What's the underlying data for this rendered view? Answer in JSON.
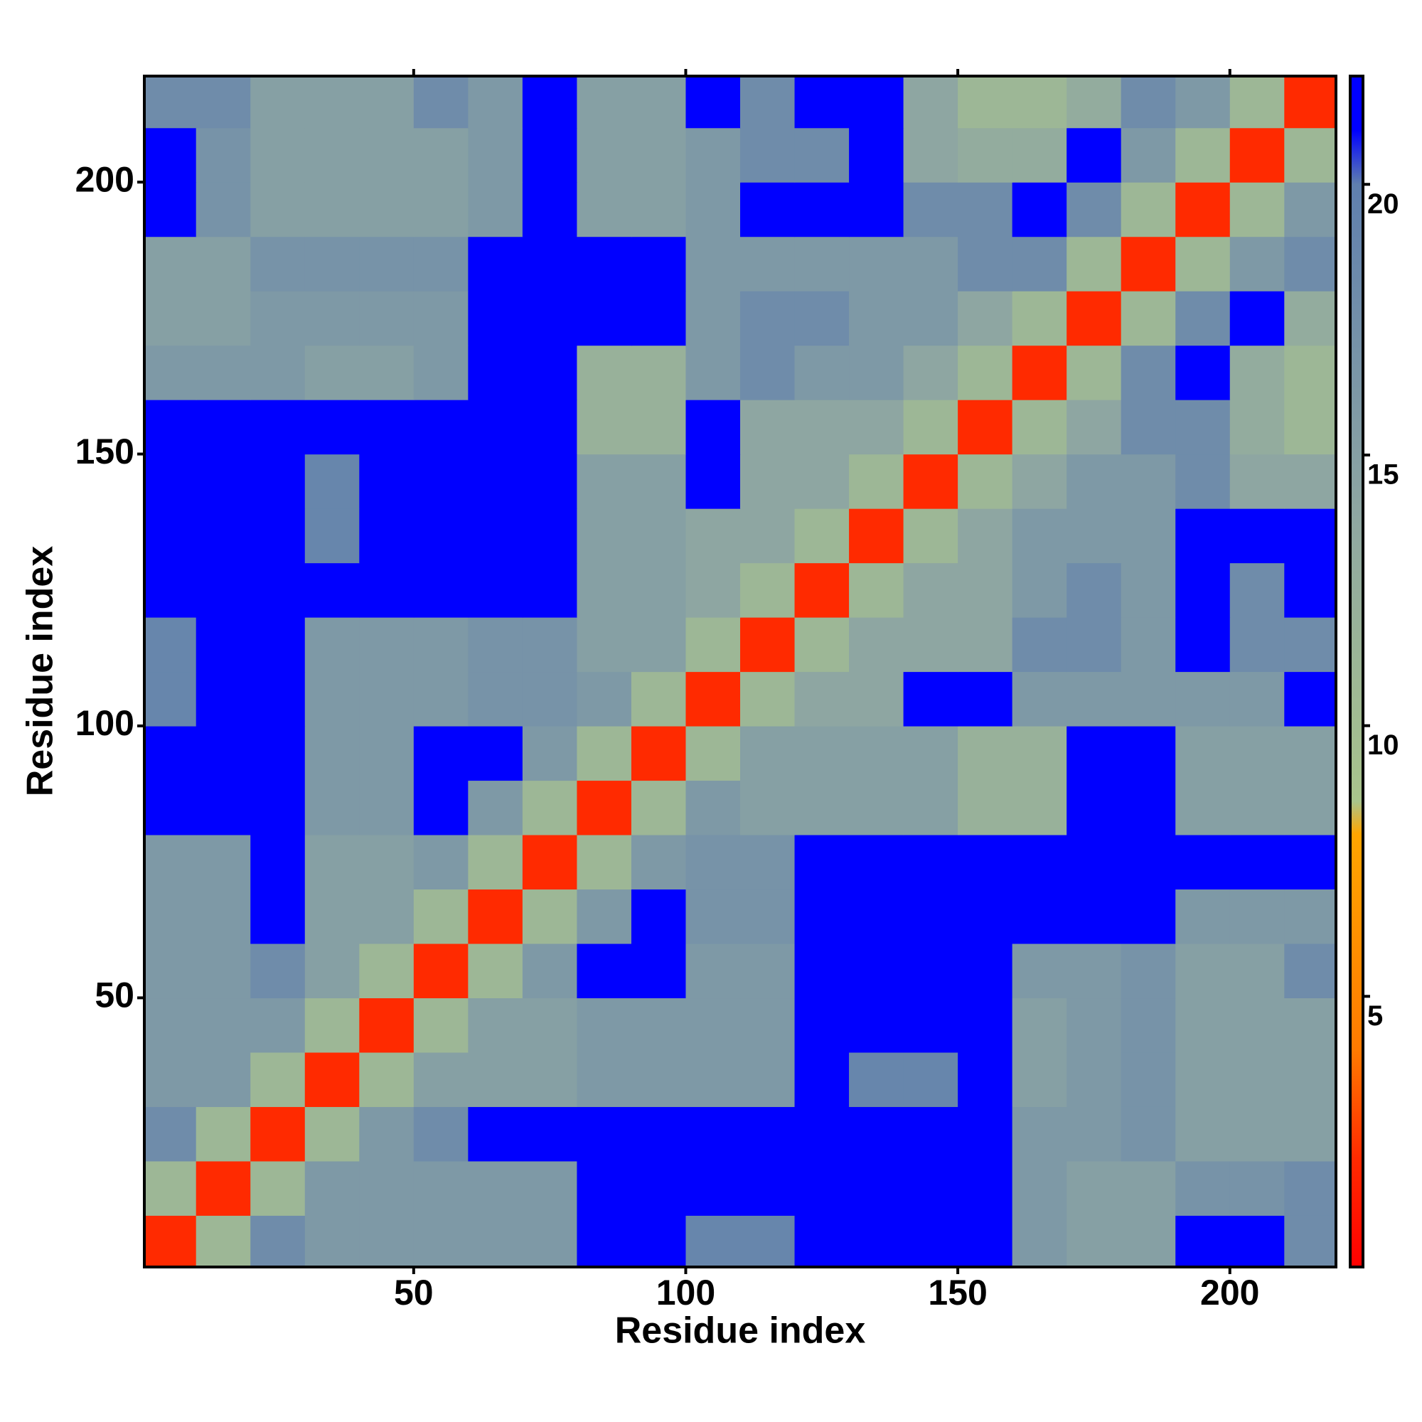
{
  "chart_data": {
    "type": "heatmap",
    "xlabel": "Residue index",
    "ylabel": "Residue index",
    "x": [
      5,
      15,
      25,
      35,
      45,
      55,
      65,
      75,
      85,
      95,
      105,
      115,
      125,
      135,
      145,
      155,
      165,
      175,
      185,
      195,
      205,
      215
    ],
    "y": [
      5,
      15,
      25,
      35,
      45,
      55,
      65,
      75,
      85,
      95,
      105,
      115,
      125,
      135,
      145,
      155,
      165,
      175,
      185,
      195,
      205,
      215
    ],
    "xlim": [
      0.5,
      219.5
    ],
    "ylim": [
      0.5,
      219.5
    ],
    "xticks": [
      50,
      100,
      150,
      200
    ],
    "yticks": [
      50,
      100,
      150,
      200
    ],
    "clim": [
      0,
      22
    ],
    "cticks": [
      5,
      10,
      15,
      20
    ],
    "colorscale": [
      [
        0,
        "#ff0000"
      ],
      [
        2,
        "#ff2a00"
      ],
      [
        4,
        "#ff7a00"
      ],
      [
        8,
        "#ffa500"
      ],
      [
        8.6,
        "#a9c48c"
      ],
      [
        14,
        "#8ea6a2"
      ],
      [
        20,
        "#5f7fae"
      ],
      [
        21,
        "#0000ff"
      ],
      [
        22,
        "#0000ff"
      ]
    ],
    "values": [
      [
        2,
        11,
        18,
        16,
        16,
        16,
        16,
        16,
        22,
        22,
        19,
        19,
        22,
        22,
        22,
        22,
        16,
        15,
        15,
        22,
        22,
        18
      ],
      [
        11,
        2,
        11,
        16,
        16,
        16,
        16,
        16,
        22,
        22,
        22,
        22,
        22,
        22,
        22,
        22,
        16,
        15,
        15,
        17,
        17,
        18
      ],
      [
        18,
        11,
        2,
        11,
        16,
        18,
        22,
        22,
        22,
        22,
        22,
        22,
        22,
        22,
        22,
        22,
        16,
        16,
        17,
        15,
        15,
        15
      ],
      [
        16,
        16,
        11,
        2,
        11,
        15,
        15,
        15,
        16,
        16,
        16,
        16,
        22,
        19,
        19,
        22,
        15,
        16,
        17,
        15,
        15,
        15
      ],
      [
        16,
        16,
        16,
        11,
        2,
        11,
        15,
        15,
        16,
        16,
        16,
        16,
        22,
        22,
        22,
        22,
        15,
        16,
        17,
        15,
        15,
        15
      ],
      [
        16,
        16,
        18,
        15,
        11,
        2,
        11,
        16,
        22,
        22,
        16,
        16,
        22,
        22,
        22,
        22,
        16,
        16,
        17,
        15,
        15,
        18
      ],
      [
        16,
        16,
        22,
        15,
        15,
        11,
        2,
        11,
        16,
        22,
        17,
        17,
        22,
        22,
        22,
        22,
        22,
        22,
        22,
        16,
        16,
        16
      ],
      [
        16,
        16,
        22,
        15,
        15,
        16,
        11,
        2,
        11,
        16,
        17,
        17,
        22,
        22,
        22,
        22,
        22,
        22,
        22,
        22,
        22,
        22
      ],
      [
        22,
        22,
        22,
        16,
        16,
        22,
        16,
        11,
        2,
        11,
        16,
        15,
        15,
        15,
        15,
        12,
        12,
        22,
        22,
        15,
        15,
        15
      ],
      [
        22,
        22,
        22,
        16,
        16,
        22,
        22,
        16,
        11,
        2,
        11,
        15,
        15,
        15,
        15,
        12,
        12,
        22,
        22,
        15,
        15,
        15
      ],
      [
        19,
        22,
        22,
        16,
        16,
        16,
        17,
        17,
        16,
        11,
        2,
        11,
        14,
        14,
        22,
        22,
        16,
        16,
        16,
        16,
        16,
        22
      ],
      [
        19,
        22,
        22,
        16,
        16,
        16,
        17,
        17,
        15,
        15,
        11,
        2,
        11,
        14,
        14,
        14,
        18,
        18,
        16,
        22,
        18,
        18
      ],
      [
        22,
        22,
        22,
        22,
        22,
        22,
        22,
        22,
        15,
        15,
        14,
        11,
        2,
        11,
        14,
        14,
        16,
        18,
        16,
        22,
        18,
        22
      ],
      [
        22,
        22,
        22,
        19,
        22,
        22,
        22,
        22,
        15,
        15,
        14,
        14,
        11,
        2,
        11,
        14,
        16,
        16,
        16,
        22,
        22,
        22
      ],
      [
        22,
        22,
        22,
        19,
        22,
        22,
        22,
        22,
        15,
        15,
        22,
        14,
        14,
        11,
        2,
        11,
        14,
        16,
        16,
        18,
        14,
        14
      ],
      [
        22,
        22,
        22,
        22,
        22,
        22,
        22,
        22,
        12,
        12,
        22,
        14,
        14,
        14,
        11,
        2,
        11,
        14,
        18,
        18,
        13,
        11
      ],
      [
        16,
        16,
        16,
        15,
        15,
        16,
        22,
        22,
        12,
        12,
        16,
        18,
        16,
        16,
        14,
        11,
        2,
        11,
        18,
        22,
        13,
        11
      ],
      [
        15,
        15,
        16,
        16,
        16,
        16,
        22,
        22,
        22,
        22,
        16,
        18,
        18,
        16,
        16,
        14,
        11,
        2,
        11,
        18,
        22,
        13
      ],
      [
        15,
        15,
        17,
        17,
        17,
        17,
        22,
        22,
        22,
        22,
        16,
        16,
        16,
        16,
        16,
        18,
        18,
        11,
        2,
        11,
        16,
        18
      ],
      [
        22,
        17,
        15,
        15,
        15,
        15,
        16,
        22,
        15,
        15,
        16,
        22,
        22,
        22,
        18,
        18,
        22,
        18,
        11,
        2,
        11,
        16
      ],
      [
        22,
        17,
        15,
        15,
        15,
        15,
        16,
        22,
        15,
        15,
        16,
        18,
        18,
        22,
        14,
        13,
        13,
        22,
        16,
        11,
        2,
        11
      ],
      [
        18,
        18,
        15,
        15,
        15,
        18,
        16,
        22,
        15,
        15,
        22,
        18,
        22,
        22,
        14,
        11,
        11,
        13,
        18,
        16,
        11,
        2
      ]
    ]
  }
}
